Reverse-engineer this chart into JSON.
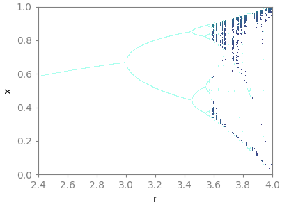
{
  "r_min": 2.4,
  "r_max": 4.0,
  "x_min": 0.0,
  "x_max": 1.0,
  "n_r": 3000,
  "n_warmup": 500,
  "n_iter": 1000,
  "xlabel": "r",
  "ylabel": "x",
  "figsize": [
    4.06,
    2.98
  ],
  "dpi": 100,
  "cmap": "viridis",
  "single_attractor_color": "#aaffee",
  "hist_bins": 400,
  "xlim": [
    2.4,
    4.0
  ],
  "ylim": [
    0.0,
    1.0
  ],
  "xticks": [
    2.4,
    2.6,
    2.8,
    3.0,
    3.2,
    3.4,
    3.6,
    3.8,
    4.0
  ],
  "yticks": [
    0.0,
    0.2,
    0.4,
    0.6,
    0.8,
    1.0
  ],
  "chaos_threshold": 32,
  "vmin_percentile": 0,
  "vmax_percentile": 99
}
